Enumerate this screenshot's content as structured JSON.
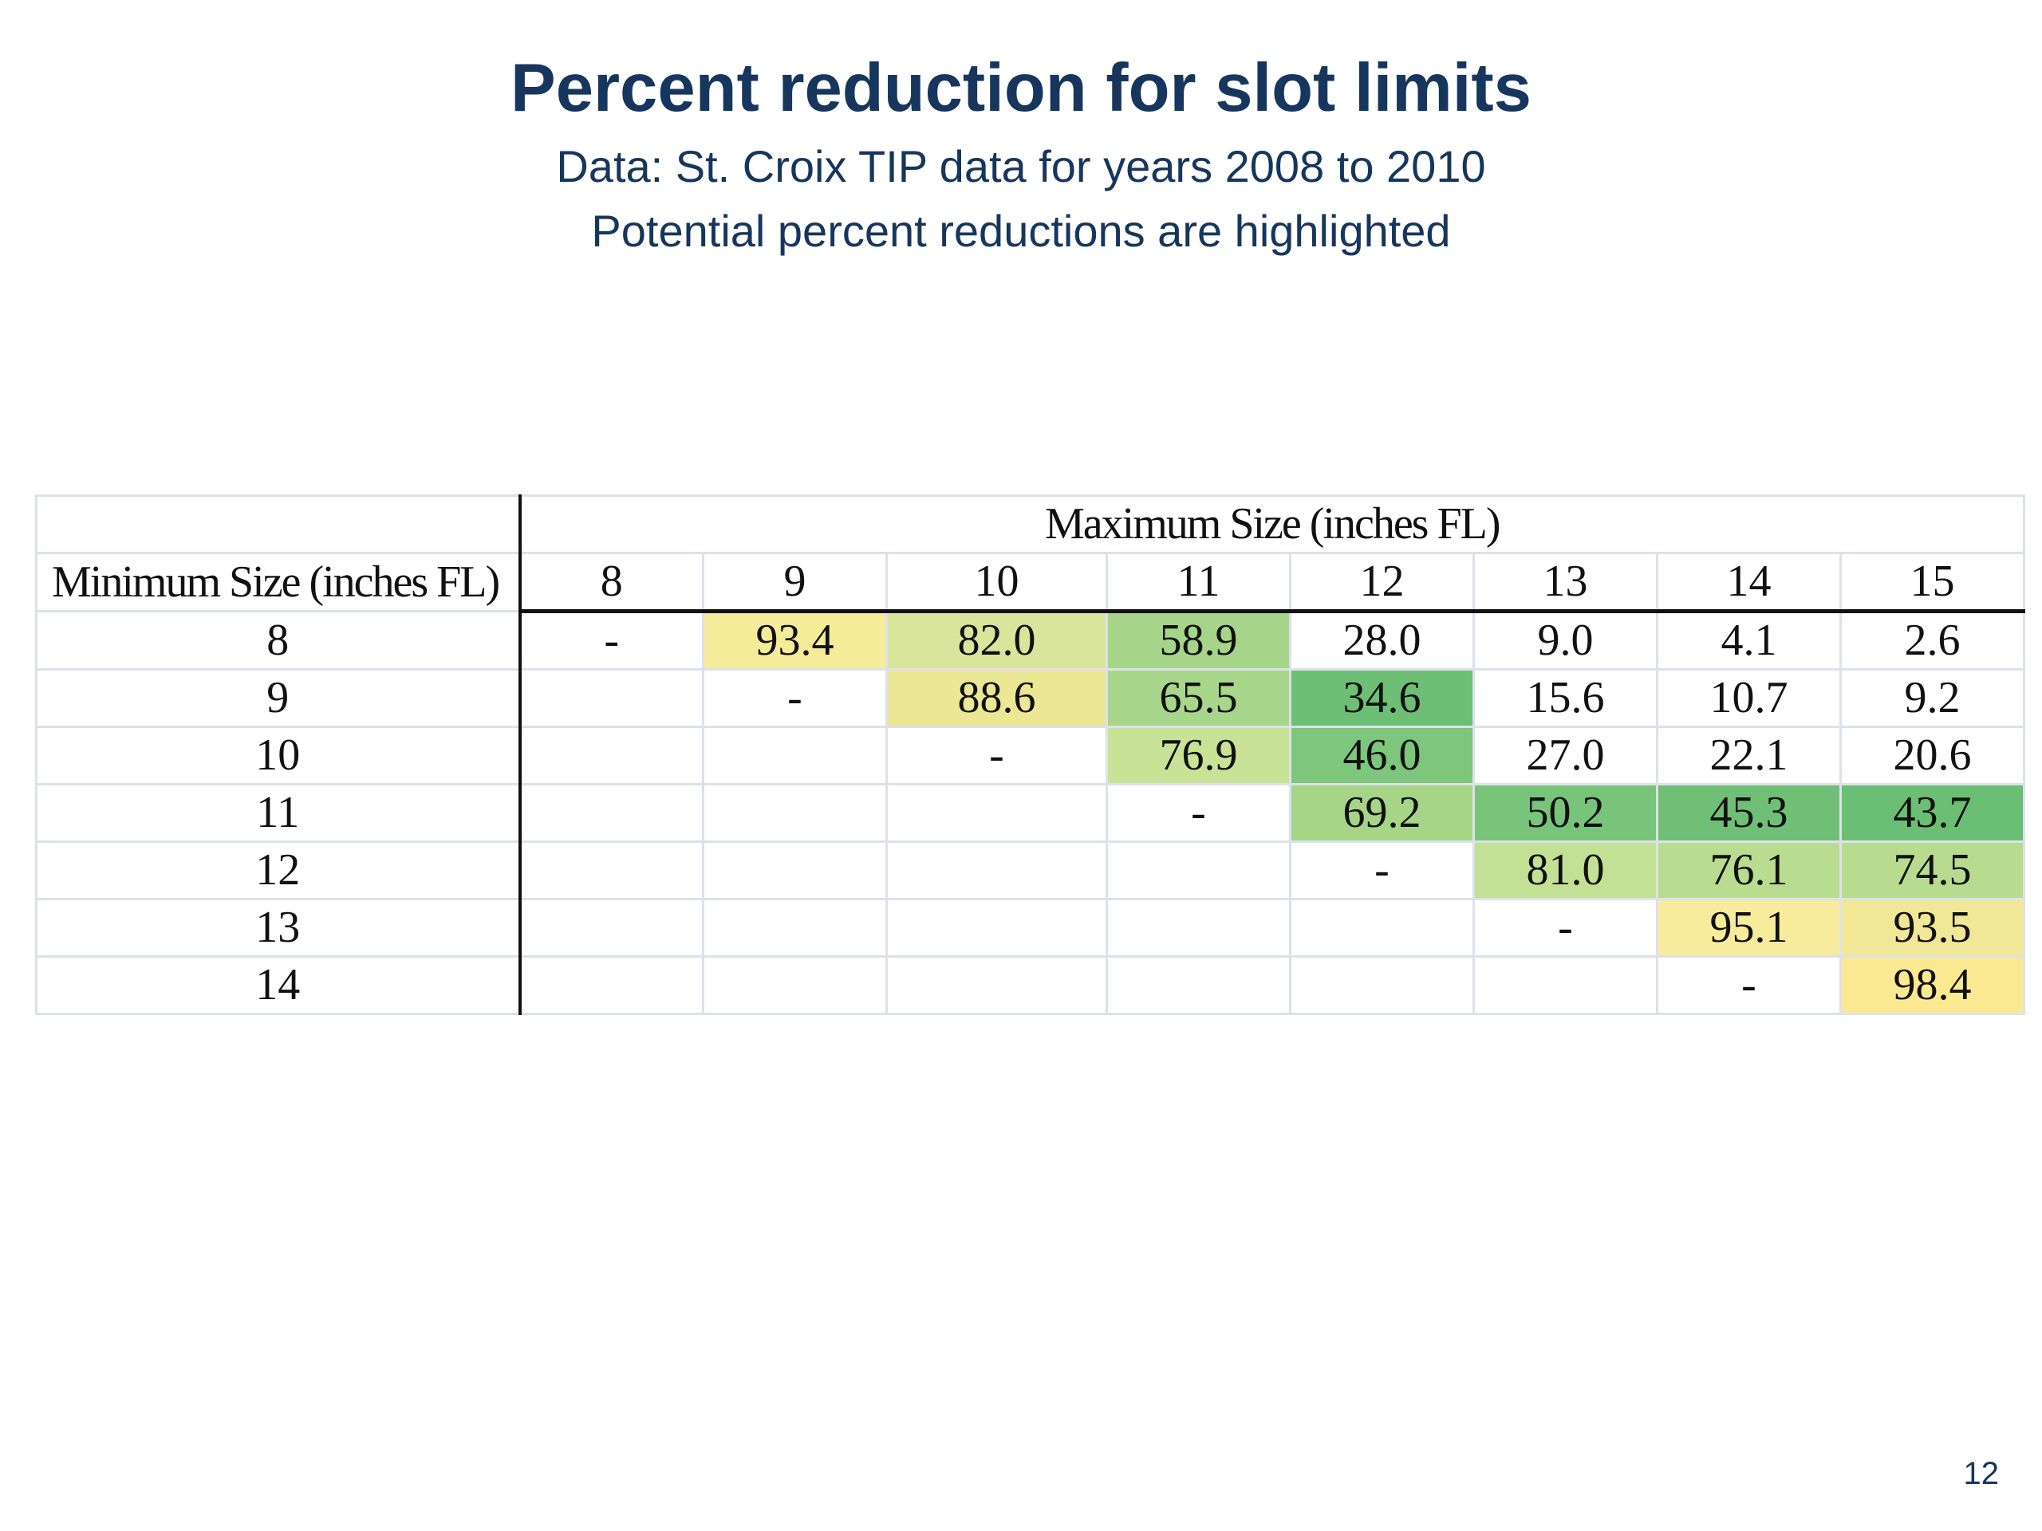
{
  "title": "Percent reduction for slot limits",
  "subtitle1": "Data: St. Croix TIP data for years 2008 to 2010",
  "subtitle2": "Potential percent reductions are highlighted",
  "page_number": "12",
  "table": {
    "max_header": "Maximum Size (inches FL)",
    "min_header": "Minimum Size (inches FL)",
    "columns": [
      "8",
      "9",
      "10",
      "11",
      "12",
      "13",
      "14",
      "15"
    ],
    "rows": [
      {
        "label": "8",
        "cells": [
          "-",
          "93.4",
          "82.0",
          "58.9",
          "28.0",
          "9.0",
          "4.1",
          "2.6"
        ]
      },
      {
        "label": "9",
        "cells": [
          "",
          "-",
          "88.6",
          "65.5",
          "34.6",
          "15.6",
          "10.7",
          "9.2"
        ]
      },
      {
        "label": "10",
        "cells": [
          "",
          "",
          "-",
          "76.9",
          "46.0",
          "27.0",
          "22.1",
          "20.6"
        ]
      },
      {
        "label": "11",
        "cells": [
          "",
          "",
          "",
          "-",
          "69.2",
          "50.2",
          "45.3",
          "43.7"
        ]
      },
      {
        "label": "12",
        "cells": [
          "",
          "",
          "",
          "",
          "-",
          "81.0",
          "76.1",
          "74.5"
        ]
      },
      {
        "label": "13",
        "cells": [
          "",
          "",
          "",
          "",
          "",
          "-",
          "95.1",
          "93.5"
        ]
      },
      {
        "label": "14",
        "cells": [
          "",
          "",
          "",
          "",
          "",
          "",
          "-",
          "98.4"
        ]
      }
    ],
    "highlight_colors": [
      [
        "",
        "#f5ec9a",
        "#d9e59a",
        "#a6d488",
        "",
        "",
        "",
        ""
      ],
      [
        "",
        "",
        "#ece794",
        "#a8d68a",
        "#6dbf76",
        "",
        "",
        ""
      ],
      [
        "",
        "",
        "",
        "#c9e396",
        "#7dc67c",
        "",
        "",
        ""
      ],
      [
        "",
        "",
        "",
        "",
        "#a7d588",
        "#78c47a",
        "#6fc076",
        "#6abf74"
      ],
      [
        "",
        "",
        "",
        "",
        "",
        "#c3e194",
        "#b9dd90",
        "#b8dc8f"
      ],
      [
        "",
        "",
        "",
        "",
        "",
        "",
        "#f7ec9b",
        "#f0e897"
      ],
      [
        "",
        "",
        "",
        "",
        "",
        "",
        "",
        "#fbe991"
      ]
    ]
  }
}
